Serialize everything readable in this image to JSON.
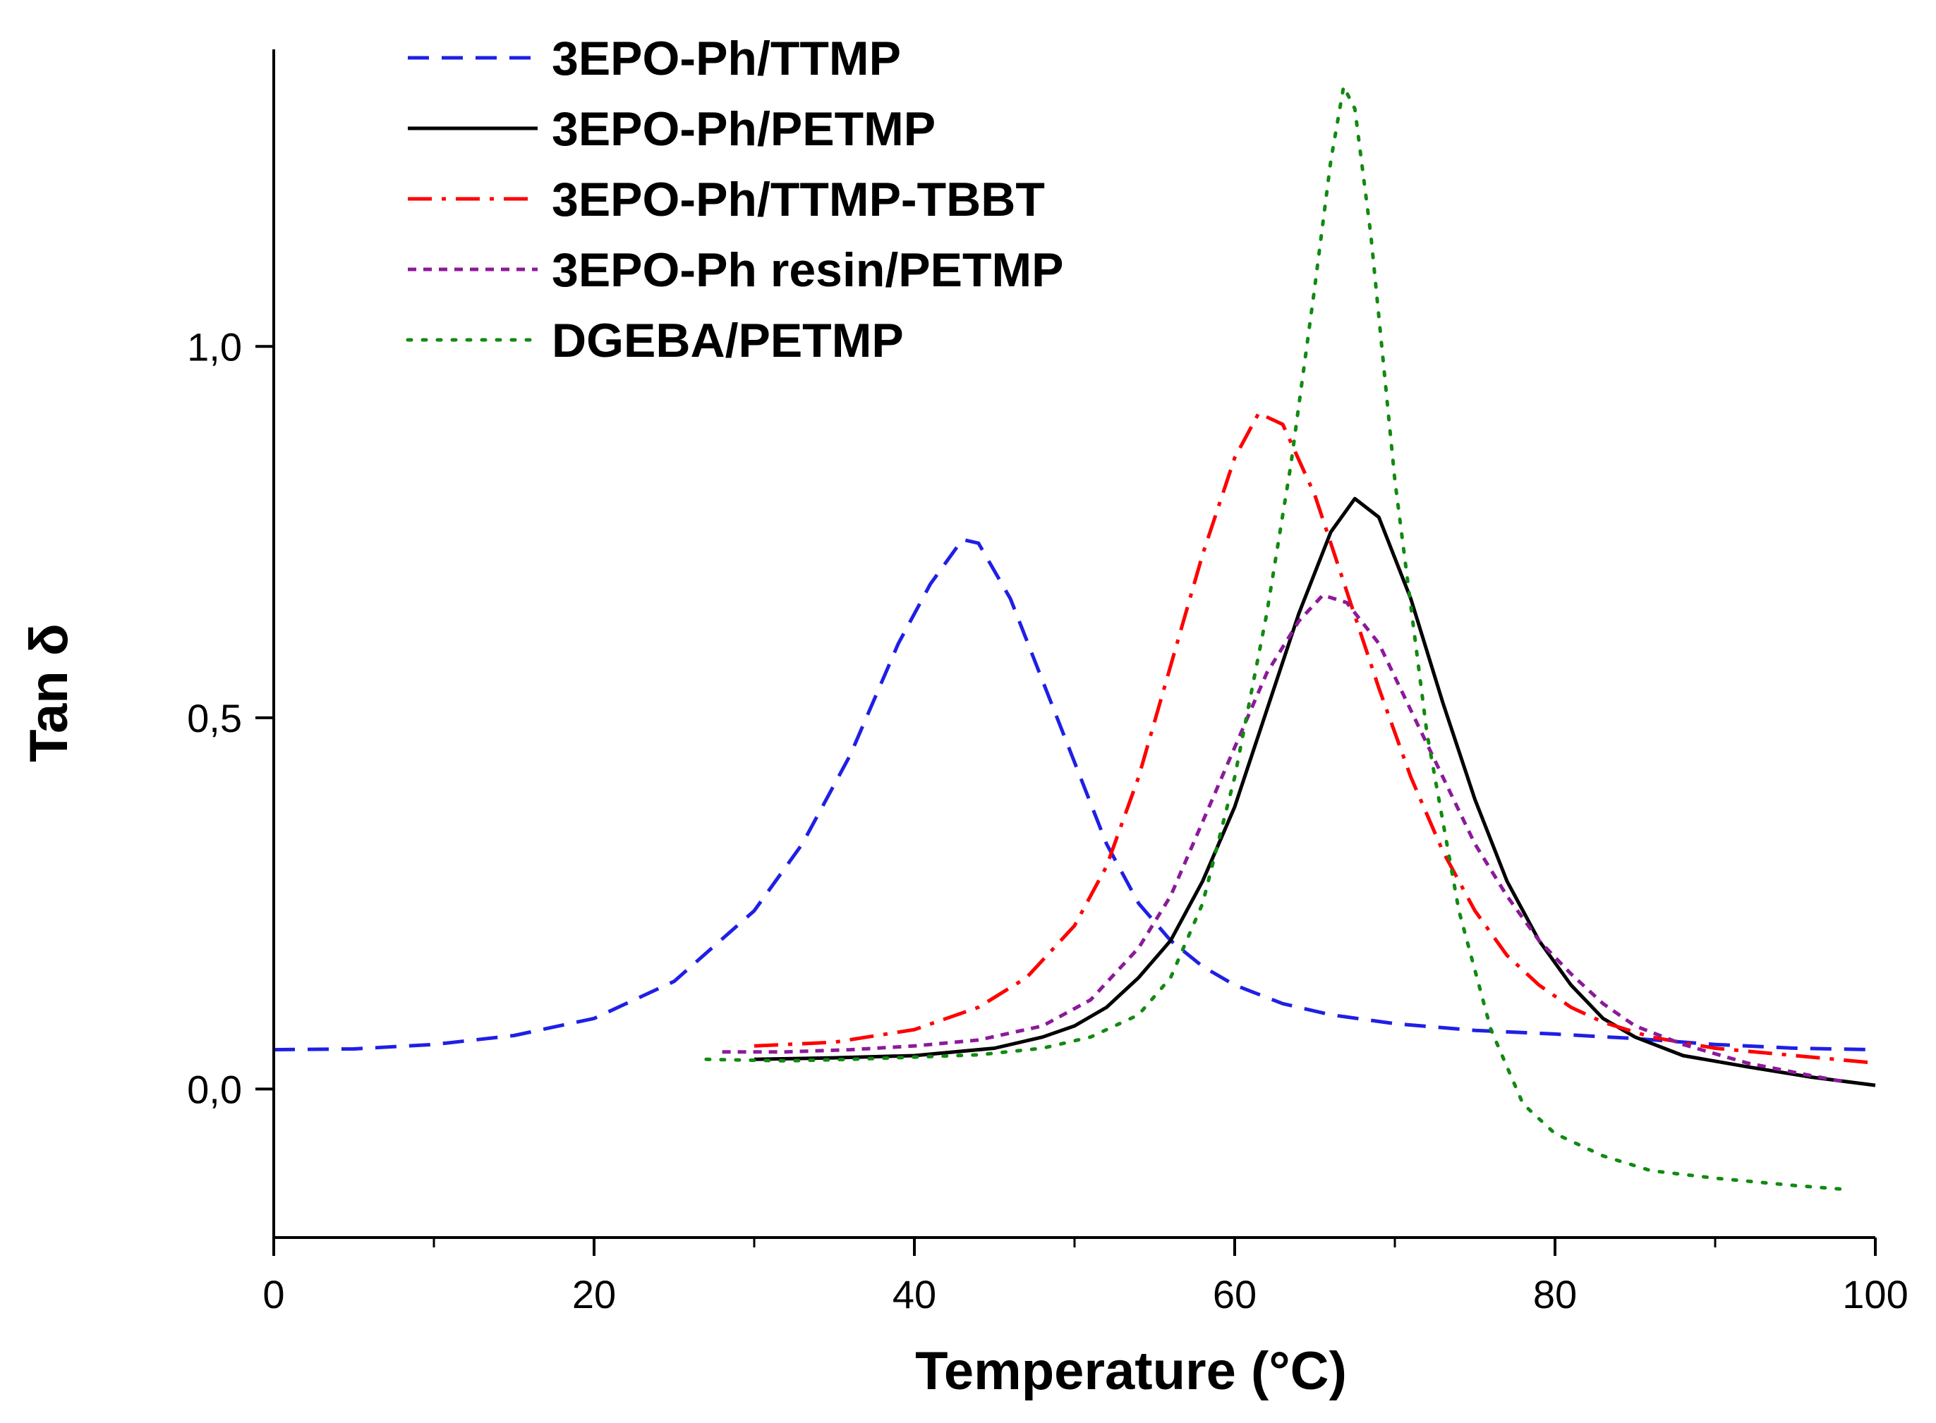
{
  "chart_data": {
    "type": "line",
    "title": "",
    "xlabel": "Temperature (°C)",
    "ylabel": "Tan δ",
    "xlim": [
      0,
      100
    ],
    "ylim": [
      -0.2,
      1.4
    ],
    "x_ticks": [
      0,
      20,
      40,
      60,
      80,
      100
    ],
    "x_tick_labels": [
      "0",
      "20",
      "40",
      "60",
      "80",
      "100"
    ],
    "x_minor_ticks": [
      10,
      30,
      50,
      70,
      90
    ],
    "y_ticks": [
      0.0,
      0.5,
      1.0
    ],
    "y_tick_labels": [
      "0,0",
      "0,5",
      "1,0"
    ],
    "grid": false,
    "legend_position": "top-left",
    "series": [
      {
        "name": "3EPO-Ph/TTMP",
        "color": "#1f1fe6",
        "dash": "dashed",
        "points": [
          [
            0,
            0.053
          ],
          [
            5,
            0.054
          ],
          [
            10,
            0.06
          ],
          [
            15,
            0.072
          ],
          [
            20,
            0.095
          ],
          [
            25,
            0.145
          ],
          [
            30,
            0.24
          ],
          [
            33,
            0.33
          ],
          [
            36,
            0.45
          ],
          [
            39,
            0.6
          ],
          [
            41,
            0.68
          ],
          [
            43,
            0.74
          ],
          [
            44,
            0.735
          ],
          [
            46,
            0.66
          ],
          [
            48,
            0.55
          ],
          [
            50,
            0.44
          ],
          [
            52,
            0.33
          ],
          [
            54,
            0.25
          ],
          [
            56,
            0.2
          ],
          [
            58,
            0.165
          ],
          [
            60,
            0.14
          ],
          [
            63,
            0.115
          ],
          [
            66,
            0.1
          ],
          [
            70,
            0.088
          ],
          [
            75,
            0.079
          ],
          [
            80,
            0.074
          ],
          [
            85,
            0.068
          ],
          [
            90,
            0.06
          ],
          [
            95,
            0.055
          ],
          [
            100,
            0.053
          ]
        ]
      },
      {
        "name": "3EPO-Ph/PETMP",
        "color": "#000000",
        "dash": "solid",
        "points": [
          [
            30,
            0.04
          ],
          [
            35,
            0.042
          ],
          [
            40,
            0.045
          ],
          [
            45,
            0.055
          ],
          [
            48,
            0.07
          ],
          [
            50,
            0.085
          ],
          [
            52,
            0.11
          ],
          [
            54,
            0.15
          ],
          [
            56,
            0.2
          ],
          [
            58,
            0.28
          ],
          [
            60,
            0.38
          ],
          [
            62,
            0.51
          ],
          [
            64,
            0.64
          ],
          [
            66,
            0.75
          ],
          [
            67.5,
            0.795
          ],
          [
            69,
            0.77
          ],
          [
            71,
            0.66
          ],
          [
            73,
            0.52
          ],
          [
            75,
            0.39
          ],
          [
            77,
            0.28
          ],
          [
            79,
            0.2
          ],
          [
            81,
            0.14
          ],
          [
            83,
            0.095
          ],
          [
            85,
            0.07
          ],
          [
            88,
            0.045
          ],
          [
            92,
            0.03
          ],
          [
            96,
            0.016
          ],
          [
            100,
            0.005
          ]
        ]
      },
      {
        "name": "3EPO-Ph/TTMP-TBBT",
        "color": "#ff0000",
        "dash": "dashdot",
        "points": [
          [
            30,
            0.058
          ],
          [
            35,
            0.063
          ],
          [
            40,
            0.08
          ],
          [
            44,
            0.11
          ],
          [
            47,
            0.15
          ],
          [
            50,
            0.22
          ],
          [
            52,
            0.3
          ],
          [
            54,
            0.42
          ],
          [
            56,
            0.57
          ],
          [
            58,
            0.72
          ],
          [
            60,
            0.85
          ],
          [
            61.5,
            0.91
          ],
          [
            63,
            0.895
          ],
          [
            65,
            0.8
          ],
          [
            67,
            0.67
          ],
          [
            69,
            0.54
          ],
          [
            71,
            0.42
          ],
          [
            73,
            0.32
          ],
          [
            75,
            0.24
          ],
          [
            77,
            0.18
          ],
          [
            79,
            0.14
          ],
          [
            81,
            0.11
          ],
          [
            83,
            0.09
          ],
          [
            86,
            0.07
          ],
          [
            90,
            0.055
          ],
          [
            95,
            0.045
          ],
          [
            100,
            0.035
          ]
        ]
      },
      {
        "name": "3EPO-Ph resin/PETMP",
        "color": "#8b1a9a",
        "dash": "shortdash",
        "points": [
          [
            28,
            0.05
          ],
          [
            32,
            0.05
          ],
          [
            36,
            0.053
          ],
          [
            40,
            0.058
          ],
          [
            44,
            0.066
          ],
          [
            48,
            0.085
          ],
          [
            51,
            0.12
          ],
          [
            54,
            0.19
          ],
          [
            56,
            0.26
          ],
          [
            58,
            0.36
          ],
          [
            60,
            0.46
          ],
          [
            62,
            0.56
          ],
          [
            64,
            0.63
          ],
          [
            65.5,
            0.665
          ],
          [
            67,
            0.655
          ],
          [
            69,
            0.6
          ],
          [
            71,
            0.51
          ],
          [
            73,
            0.42
          ],
          [
            75,
            0.33
          ],
          [
            77,
            0.26
          ],
          [
            79,
            0.2
          ],
          [
            81,
            0.155
          ],
          [
            83,
            0.115
          ],
          [
            85,
            0.085
          ],
          [
            88,
            0.06
          ],
          [
            92,
            0.035
          ],
          [
            96,
            0.018
          ],
          [
            98,
            0.01
          ]
        ]
      },
      {
        "name": "DGEBA/PETMP",
        "color": "#118a11",
        "dash": "dotted",
        "points": [
          [
            27,
            0.04
          ],
          [
            32,
            0.038
          ],
          [
            36,
            0.04
          ],
          [
            40,
            0.043
          ],
          [
            44,
            0.046
          ],
          [
            48,
            0.055
          ],
          [
            51,
            0.07
          ],
          [
            54,
            0.1
          ],
          [
            56,
            0.15
          ],
          [
            58,
            0.25
          ],
          [
            60,
            0.42
          ],
          [
            62,
            0.64
          ],
          [
            63.5,
            0.84
          ],
          [
            65,
            1.08
          ],
          [
            66,
            1.25
          ],
          [
            66.8,
            1.35
          ],
          [
            67.5,
            1.32
          ],
          [
            68.5,
            1.15
          ],
          [
            70,
            0.82
          ],
          [
            72,
            0.48
          ],
          [
            74,
            0.24
          ],
          [
            76,
            0.08
          ],
          [
            78,
            -0.02
          ],
          [
            80,
            -0.06
          ],
          [
            83,
            -0.09
          ],
          [
            86,
            -0.11
          ],
          [
            90,
            -0.12
          ],
          [
            95,
            -0.13
          ],
          [
            98,
            -0.135
          ]
        ]
      }
    ]
  }
}
